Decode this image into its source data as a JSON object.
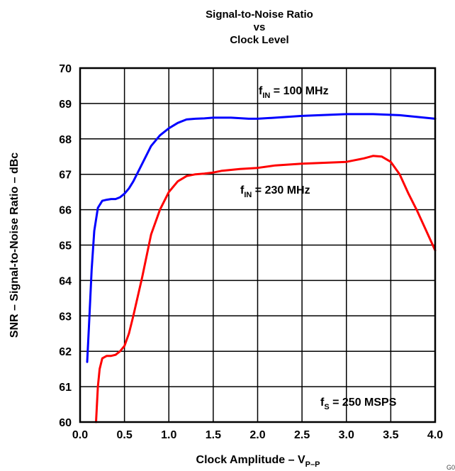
{
  "chart_data": {
    "type": "line",
    "title": [
      "Signal-to-Noise Ratio",
      "vs",
      "Clock Level"
    ],
    "xlabel": {
      "main": "Clock Amplitude – V",
      "sub": "P–P"
    },
    "ylabel": "SNR – Signal-to-Noise Ratio – dBc",
    "xlim": [
      0.0,
      4.0
    ],
    "ylim": [
      60,
      70
    ],
    "xticks": [
      "0.0",
      "0.5",
      "1.0",
      "1.5",
      "2.0",
      "2.5",
      "3.0",
      "3.5",
      "4.0"
    ],
    "yticks": [
      "60",
      "61",
      "62",
      "63",
      "64",
      "65",
      "66",
      "67",
      "68",
      "69",
      "70"
    ],
    "grid": true,
    "series": [
      {
        "name_main": "f",
        "name_sub": "IN",
        "name_rest": " = 100 MHz",
        "color": "#0000ff",
        "x": [
          0.08,
          0.1,
          0.13,
          0.16,
          0.2,
          0.25,
          0.3,
          0.35,
          0.4,
          0.45,
          0.5,
          0.55,
          0.6,
          0.7,
          0.8,
          0.9,
          1.0,
          1.1,
          1.2,
          1.3,
          1.4,
          1.5,
          1.7,
          1.9,
          2.0,
          2.2,
          2.5,
          3.0,
          3.3,
          3.6,
          3.8,
          4.0
        ],
        "y": [
          61.7,
          62.7,
          64.3,
          65.4,
          66.05,
          66.25,
          66.28,
          66.3,
          66.3,
          66.35,
          66.45,
          66.6,
          66.8,
          67.3,
          67.8,
          68.1,
          68.3,
          68.45,
          68.55,
          68.57,
          68.58,
          68.6,
          68.6,
          68.57,
          68.57,
          68.6,
          68.65,
          68.7,
          68.7,
          68.67,
          68.62,
          68.57
        ]
      },
      {
        "name_main": "f",
        "name_sub": "IN",
        "name_rest": " = 230 MHz",
        "color": "#ff0000",
        "x": [
          0.18,
          0.2,
          0.22,
          0.25,
          0.3,
          0.35,
          0.4,
          0.45,
          0.5,
          0.55,
          0.6,
          0.7,
          0.8,
          0.9,
          1.0,
          1.1,
          1.2,
          1.3,
          1.4,
          1.5,
          1.6,
          1.8,
          2.0,
          2.2,
          2.5,
          2.8,
          3.0,
          3.1,
          3.2,
          3.3,
          3.4,
          3.5,
          3.6,
          3.7,
          3.8,
          3.9,
          4.0
        ],
        "y": [
          60.0,
          61.0,
          61.5,
          61.8,
          61.87,
          61.87,
          61.9,
          62.0,
          62.15,
          62.5,
          63.0,
          64.1,
          65.3,
          66.0,
          66.5,
          66.8,
          66.95,
          67.0,
          67.02,
          67.05,
          67.1,
          67.15,
          67.18,
          67.25,
          67.3,
          67.33,
          67.35,
          67.4,
          67.45,
          67.52,
          67.5,
          67.35,
          67.0,
          66.45,
          65.95,
          65.4,
          64.85
        ]
      }
    ],
    "annotations": [
      {
        "main": "f",
        "sub": "S",
        "rest": " = 250 MSPS"
      }
    ]
  },
  "corner_mark": "G0"
}
